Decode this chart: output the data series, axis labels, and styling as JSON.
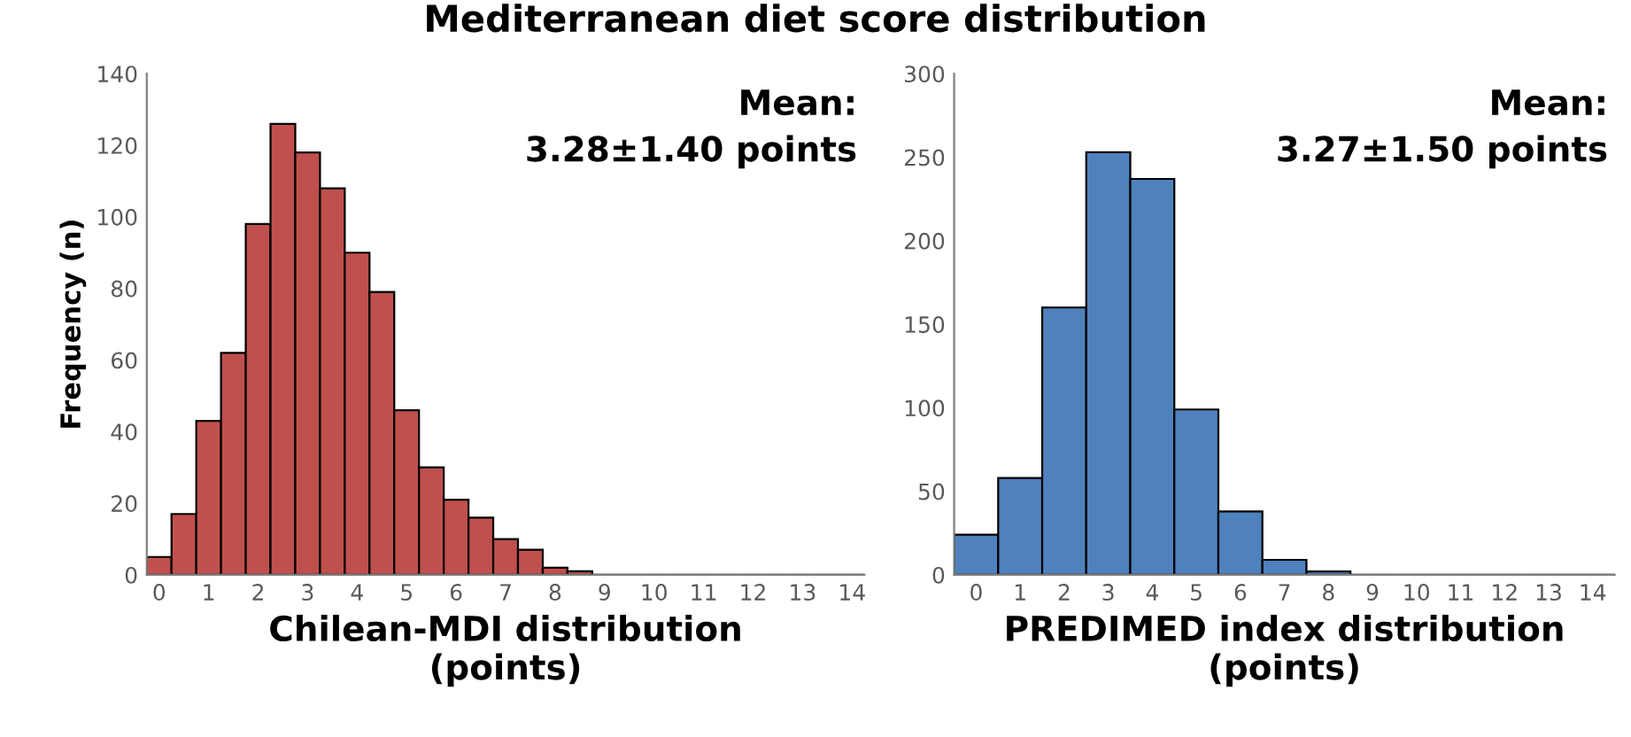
{
  "chart_data": [
    {
      "type": "histogram",
      "title": "Mediterranean diet score distribution",
      "xlabel": "Chilean-MDI distribution\n(points)",
      "ylabel": "Frequency (n)",
      "bins": [
        -0.25,
        0.25,
        0.75,
        1.25,
        1.75,
        2.25,
        2.75,
        3.25,
        3.75,
        4.25,
        4.75,
        5.25,
        5.75,
        6.25,
        6.75,
        7.25,
        7.75,
        8.25,
        8.75,
        9.25,
        9.75,
        10.25,
        10.75,
        11.25,
        11.75,
        12.25,
        12.75,
        13.25,
        13.75,
        14.25
      ],
      "values": [
        5,
        17,
        43,
        62,
        98,
        126,
        118,
        108,
        90,
        79,
        46,
        30,
        21,
        16,
        10,
        7,
        2,
        1,
        0,
        0,
        0,
        0,
        0,
        0,
        0,
        0,
        0,
        0,
        0
      ],
      "color": "#c0504d",
      "xlim": [
        -0.25,
        14.25
      ],
      "xticks": [
        0,
        1,
        2,
        3,
        4,
        5,
        6,
        7,
        8,
        9,
        10,
        11,
        12,
        13,
        14
      ],
      "ylim": [
        0,
        140
      ],
      "yticks": [
        0,
        20,
        40,
        60,
        80,
        100,
        120,
        140
      ],
      "grid": false,
      "legend": false,
      "annotations": [
        "Mean:\n3.28±1.40 points"
      ]
    },
    {
      "type": "histogram",
      "xlabel": "PREDIMED index distribution\n(points)",
      "bins": [
        -0.5,
        0.5,
        1.5,
        2.5,
        3.5,
        4.5,
        5.5,
        6.5,
        7.5,
        8.5,
        9.5,
        10.5,
        11.5,
        12.5,
        13.5,
        14.5
      ],
      "values": [
        24,
        58,
        160,
        253,
        237,
        99,
        38,
        9,
        2,
        0,
        0,
        0,
        0,
        0,
        0
      ],
      "color": "#4f81bd",
      "xlim": [
        -0.5,
        14.5
      ],
      "xticks": [
        0,
        1,
        2,
        3,
        4,
        5,
        6,
        7,
        8,
        9,
        10,
        11,
        12,
        13,
        14
      ],
      "ylim": [
        0,
        300
      ],
      "yticks": [
        0,
        50,
        100,
        150,
        200,
        250,
        300
      ],
      "grid": false,
      "legend": false,
      "annotations": [
        "Mean:\n3.27±1.50 points"
      ]
    }
  ]
}
